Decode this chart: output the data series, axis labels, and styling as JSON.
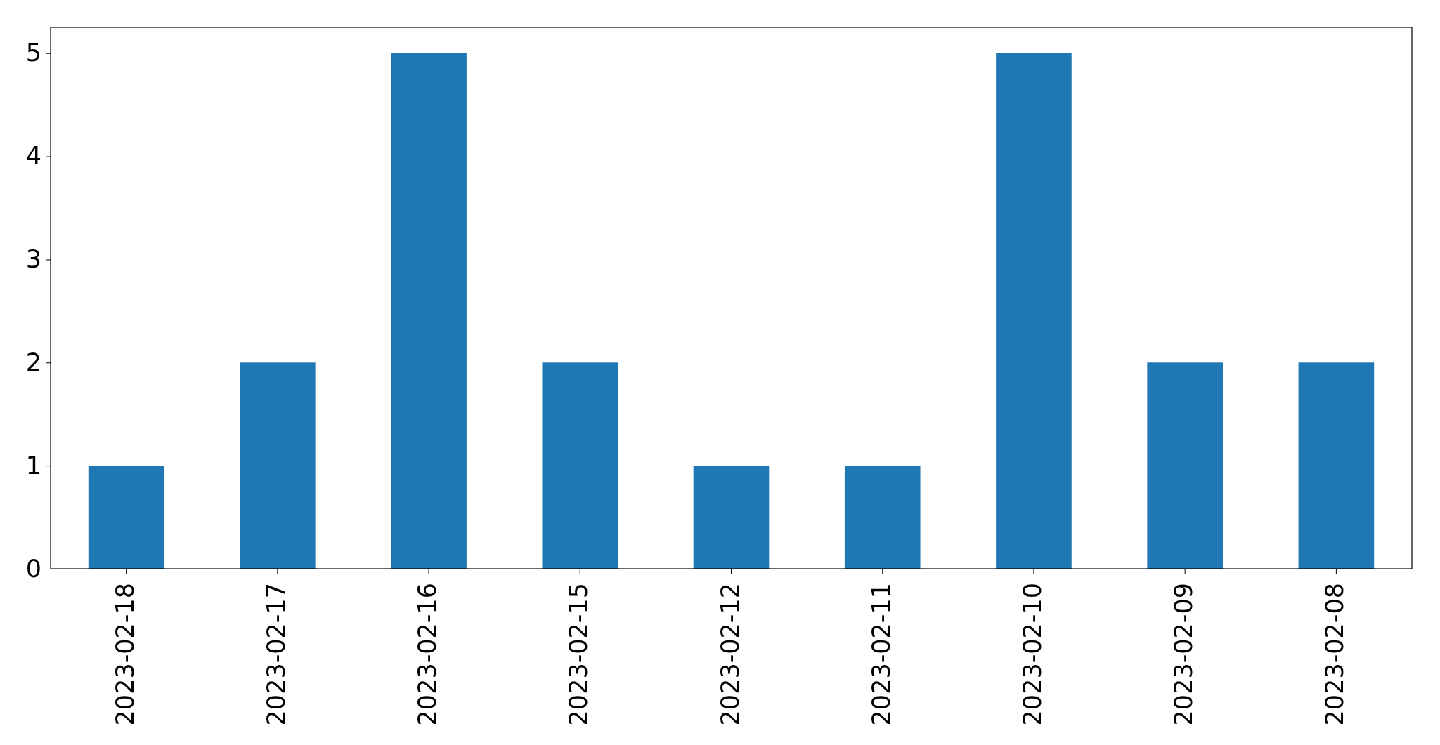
{
  "chart_data": {
    "type": "bar",
    "categories": [
      "2023-02-18",
      "2023-02-17",
      "2023-02-16",
      "2023-02-15",
      "2023-02-12",
      "2023-02-11",
      "2023-02-10",
      "2023-02-09",
      "2023-02-08"
    ],
    "values": [
      1,
      2,
      5,
      2,
      1,
      1,
      5,
      2,
      2
    ],
    "color": "#1f77b4",
    "ylim": [
      0,
      5.25
    ],
    "yticks": [
      0,
      1,
      2,
      3,
      4,
      5
    ],
    "grid": false
  }
}
